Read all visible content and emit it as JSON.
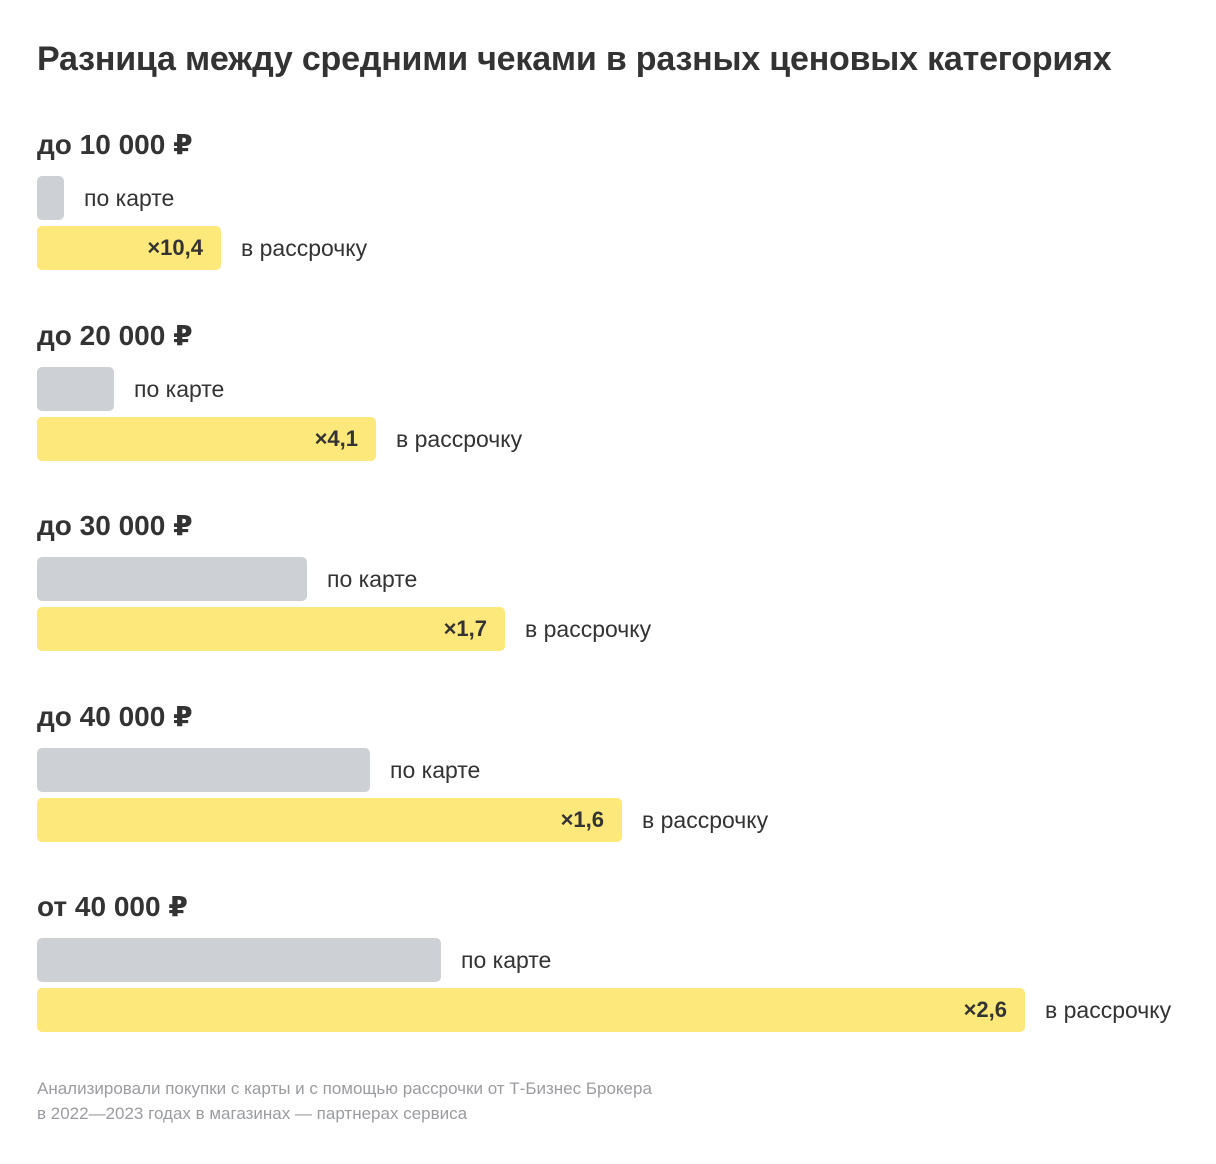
{
  "chart_data": {
    "type": "bar",
    "title": "Разница между средними чеками в разных ценовых категориях",
    "categories": [
      "до 10 000 ₽",
      "до 20 000 ₽",
      "до 30 000 ₽",
      "до 40 000 ₽",
      "от 40 000 ₽"
    ],
    "series": [
      {
        "name": "по карте",
        "values": [
          1,
          1,
          1,
          1,
          1
        ],
        "relative_length": [
          0.027,
          0.077,
          0.27,
          0.333,
          0.404
        ],
        "color": "#cdd0d5"
      },
      {
        "name": "в рассрочку",
        "multipliers": [
          "×10,4",
          "×4,1",
          "×1,7",
          "×1,6",
          "×2,6"
        ],
        "values": [
          10.4,
          4.1,
          1.7,
          1.6,
          2.6
        ],
        "relative_length": [
          0.184,
          0.339,
          0.468,
          0.585,
          0.988
        ],
        "color": "#fde87b"
      }
    ]
  },
  "footnote": {
    "line1": "Анализировали покупки с карты и с помощью рассрочки от Т-Бизнес Брокера",
    "line2": "в 2022—2023 годах в магазинах — партнерах сервиса"
  }
}
